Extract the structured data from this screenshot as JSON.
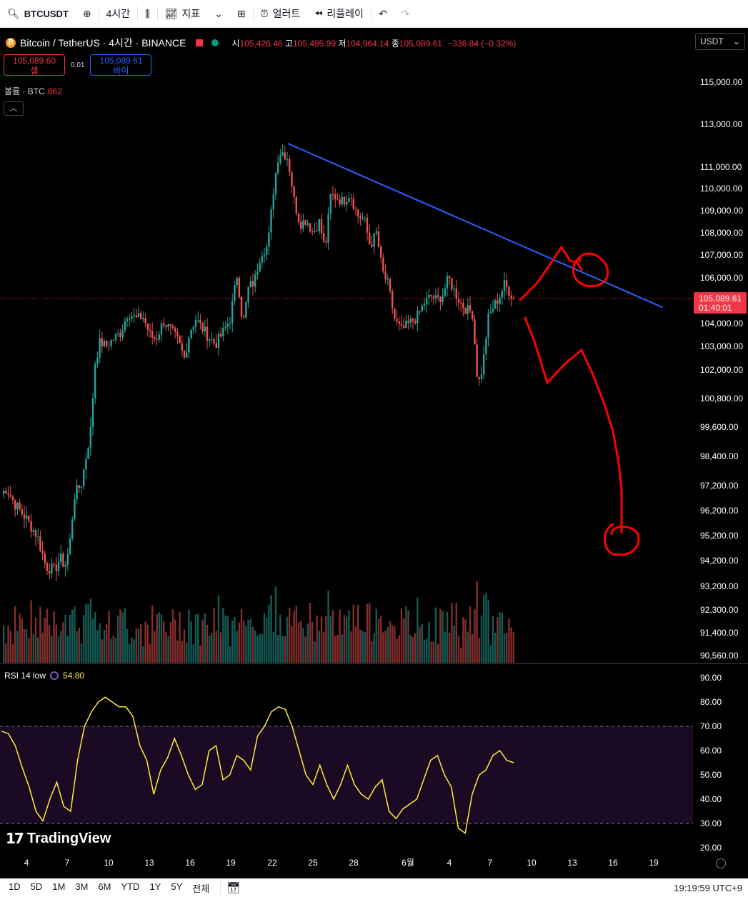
{
  "toolbar": {
    "symbol": "BTCUSDT",
    "interval": "4시간",
    "indicators": "지표",
    "alert": "얼러트",
    "replay": "리플레이"
  },
  "legend": {
    "title": "Bitcoin / TetherUS · 4시간 · BINANCE",
    "open_key": "시",
    "open": "105,426.46",
    "high_key": "고",
    "high": "105,495.99",
    "low_key": "저",
    "low": "104,964.14",
    "close_key": "종",
    "close": "105,089.61",
    "change": "−336.84 (−0.32%)"
  },
  "trade": {
    "sell_price": "105,089.60",
    "sell_label": "셀",
    "spread": "0.01",
    "buy_price": "105,089.61",
    "buy_label": "바이"
  },
  "volume": {
    "label": "볼륨 · BTC",
    "value": "862"
  },
  "currency": "USDT",
  "price_tag": {
    "price": "105,089.61",
    "countdown": "01:40:01"
  },
  "price_axis": [
    "115,000.00",
    "113,000.00",
    "111,000.00",
    "110,000.00",
    "109,000.00",
    "108,000.00",
    "107,000.00",
    "106,000.00",
    "104,000.00",
    "103,000.00",
    "102,000.00",
    "100,800.00",
    "99,600.00",
    "98,400.00",
    "97,200.00",
    "96,200.00",
    "95,200.00",
    "94,200.00",
    "93,200.00",
    "92,300.00",
    "91,400.00",
    "90,560.00"
  ],
  "rsi": {
    "label": "RSI 14 low",
    "value": "54.80",
    "axis": [
      "90.00",
      "80.00",
      "70.00",
      "60.00",
      "50.00",
      "40.00",
      "30.00",
      "20.00"
    ]
  },
  "time_axis": [
    "4",
    "7",
    "10",
    "13",
    "16",
    "19",
    "22",
    "25",
    "28",
    "6월",
    "4",
    "7",
    "10",
    "13",
    "16",
    "19"
  ],
  "ranges": [
    "1D",
    "5D",
    "1M",
    "3M",
    "6M",
    "YTD",
    "1Y",
    "5Y",
    "전체"
  ],
  "clock": "19:19:59 UTC+9",
  "brand": "TradingView",
  "colors": {
    "up": "#26a69a",
    "down": "#ef5350",
    "trendline": "#2962ff",
    "drawing": "#ff0000",
    "rsi": "#ffeb3b",
    "price_tag": "#f23645"
  },
  "chart_data": {
    "type": "candlestick",
    "anchors": [
      [
        0,
        96800
      ],
      [
        9,
        97100
      ],
      [
        20,
        96500
      ],
      [
        36,
        95900
      ],
      [
        52,
        95200
      ],
      [
        64,
        94000
      ],
      [
        76,
        93800
      ],
      [
        84,
        94300
      ],
      [
        91,
        94000
      ],
      [
        97,
        94700
      ],
      [
        104,
        96800
      ],
      [
        114,
        97300
      ],
      [
        120,
        98300
      ],
      [
        127,
        99500
      ],
      [
        133,
        102300
      ],
      [
        140,
        103200
      ],
      [
        148,
        103000
      ],
      [
        158,
        103300
      ],
      [
        169,
        103600
      ],
      [
        179,
        104500
      ],
      [
        190,
        104200
      ],
      [
        200,
        104300
      ],
      [
        210,
        103500
      ],
      [
        218,
        103300
      ],
      [
        229,
        104100
      ],
      [
        239,
        103700
      ],
      [
        248,
        103300
      ],
      [
        258,
        102500
      ],
      [
        266,
        103700
      ],
      [
        274,
        104200
      ],
      [
        283,
        103800
      ],
      [
        292,
        103400
      ],
      [
        302,
        103100
      ],
      [
        312,
        103600
      ],
      [
        322,
        104200
      ],
      [
        332,
        106200
      ],
      [
        340,
        103900
      ],
      [
        348,
        105600
      ],
      [
        356,
        105800
      ],
      [
        365,
        107100
      ],
      [
        375,
        107400
      ],
      [
        384,
        110300
      ],
      [
        390,
        111600
      ],
      [
        396,
        111700
      ],
      [
        403,
        111400
      ],
      [
        412,
        109400
      ],
      [
        420,
        108400
      ],
      [
        429,
        108600
      ],
      [
        438,
        108000
      ],
      [
        447,
        108500
      ],
      [
        455,
        107200
      ],
      [
        463,
        109700
      ],
      [
        471,
        109600
      ],
      [
        480,
        109400
      ],
      [
        490,
        109800
      ],
      [
        500,
        108800
      ],
      [
        510,
        108600
      ],
      [
        518,
        107400
      ],
      [
        527,
        108000
      ],
      [
        535,
        106300
      ],
      [
        543,
        105700
      ],
      [
        553,
        104100
      ],
      [
        562,
        103700
      ],
      [
        573,
        104000
      ],
      [
        584,
        104300
      ],
      [
        594,
        104900
      ],
      [
        603,
        105200
      ],
      [
        612,
        105000
      ],
      [
        620,
        105300
      ],
      [
        628,
        106000
      ],
      [
        636,
        105400
      ],
      [
        645,
        104900
      ],
      [
        653,
        104600
      ],
      [
        661,
        104500
      ],
      [
        669,
        101300
      ],
      [
        676,
        102200
      ],
      [
        683,
        104200
      ],
      [
        690,
        104700
      ],
      [
        698,
        105100
      ],
      [
        706,
        105700
      ],
      [
        713,
        105400
      ],
      [
        719,
        105090
      ]
    ],
    "last_x": 719,
    "trendline": [
      [
        403,
        112100
      ],
      [
        928,
        104700
      ]
    ],
    "rsi_values": [
      68,
      67,
      62,
      53,
      45,
      35,
      31,
      40,
      47,
      37,
      35,
      56,
      70,
      76,
      80,
      82,
      80,
      78,
      78,
      74,
      62,
      56,
      42,
      52,
      57,
      65,
      58,
      50,
      44,
      46,
      60,
      62,
      48,
      50,
      58,
      56,
      52,
      66,
      70,
      76,
      78,
      77,
      70,
      60,
      50,
      46,
      54,
      46,
      40,
      46,
      54,
      46,
      42,
      40,
      45,
      48,
      35,
      32,
      36,
      38,
      40,
      48,
      56,
      58,
      50,
      45,
      28,
      26,
      42,
      50,
      52,
      58,
      60,
      56,
      55
    ],
    "rsi_levels": [
      70,
      30
    ],
    "annotations": "hand-drawn red path with circles near 106,500 and 95,300"
  }
}
